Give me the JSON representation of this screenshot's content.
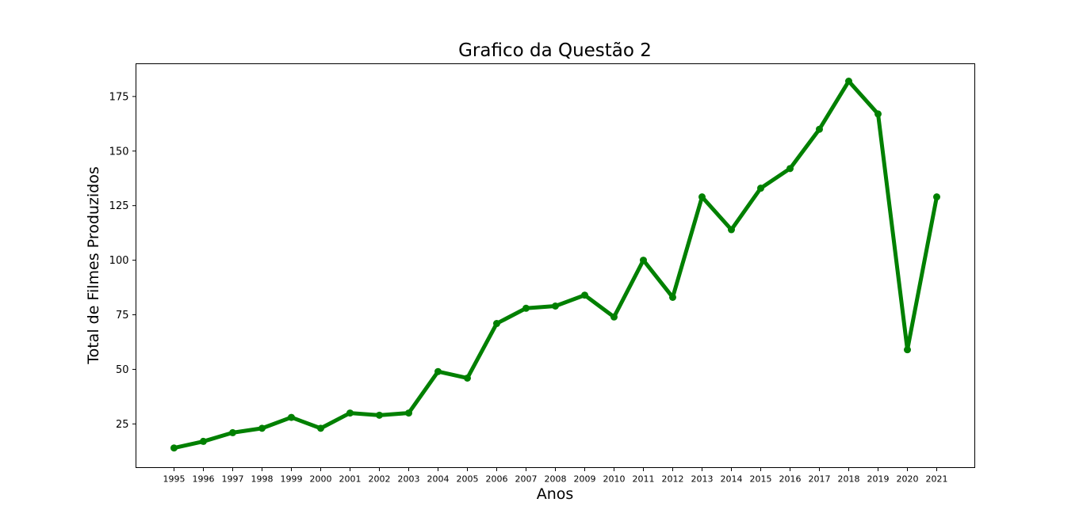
{
  "chart_data": {
    "type": "line",
    "title": "Grafico da Questão 2",
    "xlabel": "Anos",
    "ylabel": "Total de Filmes Produzidos",
    "categories": [
      "1995",
      "1996",
      "1997",
      "1998",
      "1999",
      "2000",
      "2001",
      "2002",
      "2003",
      "2004",
      "2005",
      "2006",
      "2007",
      "2008",
      "2009",
      "2010",
      "2011",
      "2012",
      "2013",
      "2014",
      "2015",
      "2016",
      "2017",
      "2018",
      "2019",
      "2020",
      "2021"
    ],
    "series": [
      {
        "values": [
          14,
          17,
          21,
          23,
          28,
          23,
          30,
          29,
          30,
          49,
          46,
          71,
          78,
          79,
          84,
          74,
          100,
          83,
          129,
          114,
          133,
          142,
          160,
          182,
          167,
          59,
          129
        ]
      }
    ],
    "yticks": [
      25,
      50,
      75,
      100,
      125,
      150,
      175
    ],
    "ylim": [
      5,
      190
    ],
    "grid": false,
    "legend": "none",
    "line_color": "#008000"
  }
}
